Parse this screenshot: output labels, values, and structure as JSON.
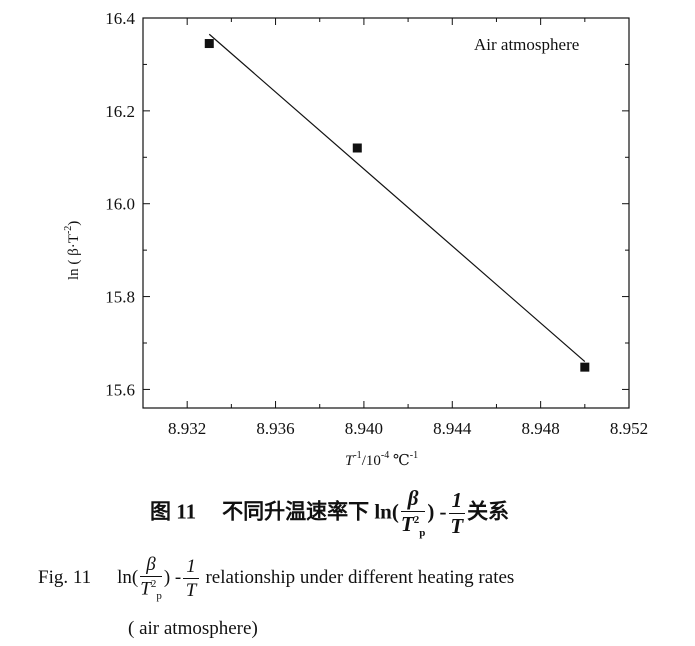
{
  "chart_data": {
    "type": "scatter",
    "annotation": "Air atmosphere",
    "xlabel_parts": {
      "T": "T",
      "sup1": "-1",
      "mid": "/10",
      "sup2": "-4",
      "unit": " ℃",
      "sup3": "-1"
    },
    "ylabel_parts": {
      "pre": "ln ( β·T",
      "sup": "-2",
      "post": ")"
    },
    "xlim": [
      8.93,
      8.952
    ],
    "ylim": [
      15.56,
      16.4
    ],
    "x_ticks": [
      "8.932",
      "8.936",
      "8.940",
      "8.944",
      "8.948",
      "8.952"
    ],
    "y_ticks": [
      "15.6",
      "15.8",
      "16.0",
      "16.2",
      "16.4"
    ],
    "points": [
      {
        "x": 8.933,
        "y": 16.345
      },
      {
        "x": 8.9397,
        "y": 16.12
      },
      {
        "x": 8.95,
        "y": 15.648
      }
    ],
    "fit_line": {
      "x": [
        8.933,
        8.95
      ],
      "y": [
        16.365,
        15.66
      ]
    },
    "marker_color": "#111111",
    "line_color": "#111111"
  },
  "caption": {
    "cn": {
      "fig": "图 11",
      "text": "不同升温速率下 ln(",
      "frac_num": "β",
      "frac_den_T": "T",
      "frac_den_sub": "p",
      "frac_den_sup": "2",
      "mid": ") -",
      "frac2_num": "1",
      "frac2_den": "T",
      "tail": "关系"
    },
    "en": {
      "fig": "Fig. 11",
      "lead": "ln(",
      "frac_num": "β",
      "frac_den_T": "T",
      "frac_den_sub": "p",
      "frac_den_sup": "2",
      "mid": ") -",
      "frac2_num": "1",
      "frac2_den": "T",
      "tail": "relationship under different heating rates",
      "line2": "( air atmosphere)"
    }
  }
}
